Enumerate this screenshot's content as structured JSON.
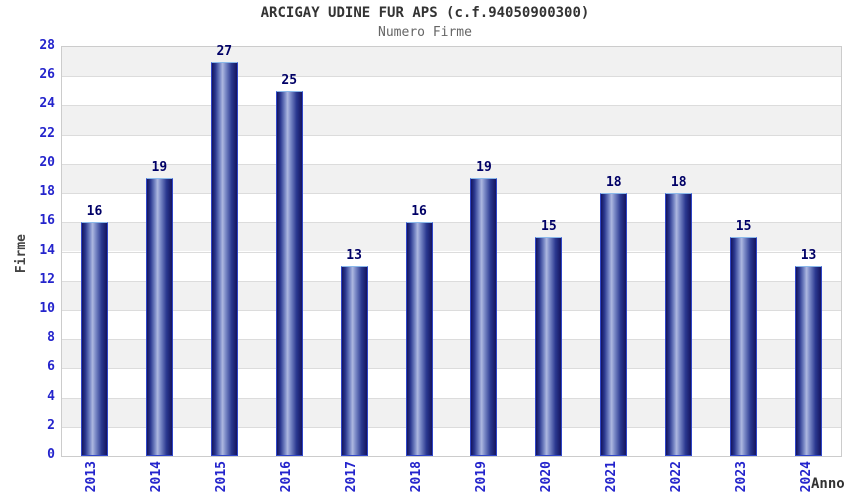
{
  "header": {
    "title": "ARCIGAY UDINE FUR APS (c.f.94050900300)",
    "subtitle": "Numero Firme"
  },
  "chart_data": {
    "type": "bar",
    "title": "ARCIGAY UDINE FUR APS (c.f.94050900300)",
    "subtitle": "Numero Firme",
    "categories": [
      "2013",
      "2014",
      "2015",
      "2016",
      "2017",
      "2018",
      "2019",
      "2020",
      "2021",
      "2022",
      "2023",
      "2024"
    ],
    "values": [
      16,
      19,
      27,
      25,
      13,
      16,
      19,
      15,
      18,
      18,
      15,
      13
    ],
    "xlabel": "Anno",
    "ylabel": "Firme",
    "ylim": [
      0,
      28
    ],
    "ytick_step": 2,
    "yticks": [
      0,
      2,
      4,
      6,
      8,
      10,
      12,
      14,
      16,
      18,
      20,
      22,
      24,
      26,
      28
    ],
    "grid": "horizontal gridlines every 2 units with alternating shaded bands",
    "legend": "none",
    "bar_labels_shown": true
  },
  "colors": {
    "title": "#333333",
    "subtitle": "#666666",
    "tick_label": "#2424cc",
    "bar_value_label": "#000066",
    "axis_title": "#444444",
    "band_shaded": "#f1f1f1",
    "band_plain": "#ffffff",
    "gridline": "#dcdcdc",
    "plot_border": "#cccccc",
    "bar_border": "#2f46c8",
    "bar_border_top": "#8ab8ea",
    "bar_gradient": [
      "#15155e",
      "#2a3890",
      "#7d8cc8",
      "#aeb8e0",
      "#7d8cc8",
      "#2a3890",
      "#15155e"
    ]
  }
}
